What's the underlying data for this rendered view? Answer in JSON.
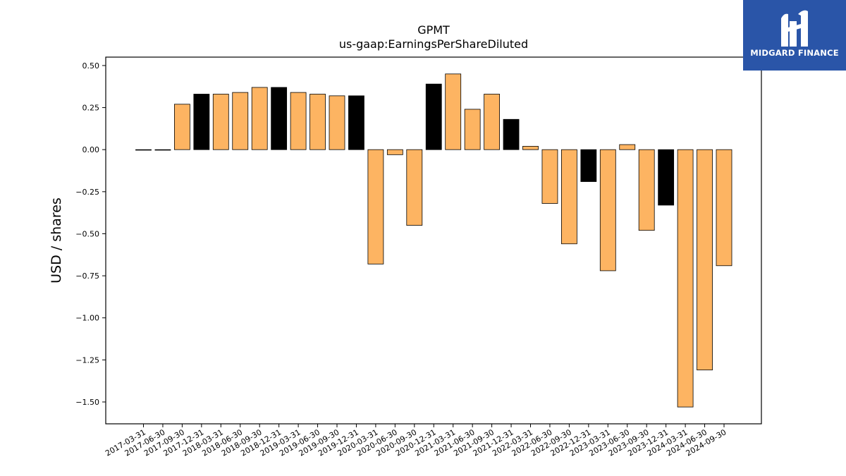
{
  "logo": {
    "text": "MIDGARD FINANCE",
    "background": "#2a55a8"
  },
  "chart_data": {
    "type": "bar",
    "title": "GPMT",
    "subtitle": "us-gaap:EarningsPerShareDiluted",
    "xlabel": "",
    "ylabel": "USD / shares",
    "ylim": [
      -1.63,
      0.55
    ],
    "yticks": [
      0.5,
      0.25,
      0.0,
      -0.25,
      -0.5,
      -0.75,
      -1.0,
      -1.25,
      -1.5
    ],
    "ytick_labels": [
      "0.50",
      "0.25",
      "0.00",
      "−0.25",
      "−0.50",
      "−0.75",
      "−1.00",
      "−1.25",
      "−1.50"
    ],
    "grid": false,
    "colors": {
      "quarterly": "#fdb462",
      "annual": "#000000"
    },
    "categories": [
      "2017-03-31",
      "2017-06-30",
      "2017-09-30",
      "2017-12-31",
      "2018-03-31",
      "2018-06-30",
      "2018-09-30",
      "2018-12-31",
      "2019-03-31",
      "2019-06-30",
      "2019-09-30",
      "2019-12-31",
      "2020-03-31",
      "2020-06-30",
      "2020-09-30",
      "2020-12-31",
      "2021-03-31",
      "2021-06-30",
      "2021-09-30",
      "2021-12-31",
      "2022-03-31",
      "2022-06-30",
      "2022-09-30",
      "2022-12-31",
      "2023-03-31",
      "2023-06-30",
      "2023-09-30",
      "2023-12-31",
      "2024-03-31",
      "2024-06-30",
      "2024-09-30"
    ],
    "values": [
      0.0,
      0.0,
      0.27,
      0.33,
      0.33,
      0.34,
      0.37,
      0.37,
      0.34,
      0.33,
      0.32,
      0.32,
      -0.68,
      -0.03,
      -0.45,
      0.39,
      0.45,
      0.24,
      0.33,
      0.18,
      0.02,
      -0.32,
      -0.56,
      -0.19,
      -0.72,
      0.03,
      -0.48,
      -0.33,
      -1.53,
      -1.31,
      -0.69
    ],
    "bar_kind": [
      "q",
      "q",
      "q",
      "a",
      "q",
      "q",
      "q",
      "a",
      "q",
      "q",
      "q",
      "a",
      "q",
      "q",
      "q",
      "a",
      "q",
      "q",
      "q",
      "a",
      "q",
      "q",
      "q",
      "a",
      "q",
      "q",
      "q",
      "a",
      "q",
      "q",
      "q"
    ]
  }
}
